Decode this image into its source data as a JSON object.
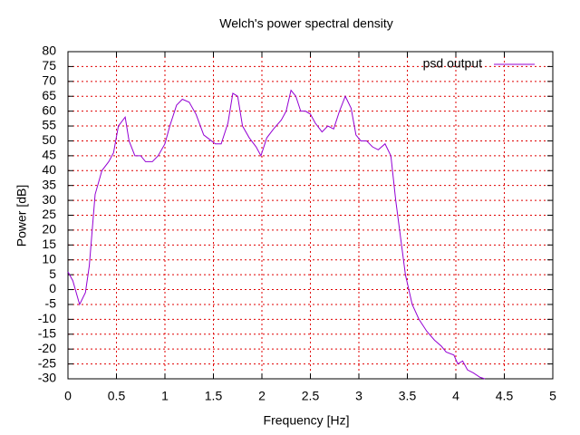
{
  "chart_data": {
    "type": "line",
    "title": "Welch's power spectral density",
    "x_label": "Frequency [Hz]",
    "y_label": "Power [dB]",
    "x": [
      0,
      0.05,
      0.12,
      0.18,
      0.22,
      0.28,
      0.35,
      0.42,
      0.47,
      0.52,
      0.59,
      0.63,
      0.69,
      0.75,
      0.8,
      0.87,
      0.93,
      1.0,
      1.05,
      1.12,
      1.18,
      1.25,
      1.32,
      1.4,
      1.48,
      1.52,
      1.58,
      1.65,
      1.7,
      1.75,
      1.8,
      1.87,
      1.94,
      1.99,
      2.05,
      2.12,
      2.2,
      2.25,
      2.3,
      2.35,
      2.4,
      2.45,
      2.5,
      2.55,
      2.62,
      2.68,
      2.74,
      2.8,
      2.86,
      2.92,
      2.97,
      3.02,
      3.08,
      3.14,
      3.2,
      3.27,
      3.33,
      3.38,
      3.44,
      3.48,
      3.55,
      3.62,
      3.7,
      3.78,
      3.85,
      3.9,
      3.98,
      4.02,
      4.07,
      4.12,
      4.18,
      4.25,
      4.3
    ],
    "series": [
      {
        "name": "psd output",
        "color": "#9400d3",
        "values": [
          6,
          3,
          -5,
          -1,
          8,
          32,
          40,
          43,
          46,
          55,
          58,
          50,
          45,
          45,
          43,
          43,
          45,
          49,
          55,
          62,
          64,
          63,
          59,
          52,
          50,
          49,
          49,
          56,
          66,
          65,
          55,
          51,
          48,
          45,
          51,
          54,
          57,
          60,
          67,
          65,
          60,
          60,
          59,
          56,
          53,
          55,
          54,
          60,
          65,
          61,
          52,
          50,
          50,
          48,
          47,
          49,
          45,
          30,
          15,
          5,
          -5,
          -10,
          -14,
          -17,
          -19,
          -21,
          -22,
          -25,
          -24,
          -27,
          -28,
          -29.5,
          -30
        ]
      }
    ],
    "xlim": [
      0,
      5
    ],
    "ylim": [
      -30,
      80
    ],
    "xticks": [
      0,
      0.5,
      1,
      1.5,
      2,
      2.5,
      3,
      3.5,
      4,
      4.5,
      5
    ],
    "yticks": [
      -30,
      -25,
      -20,
      -15,
      -10,
      -5,
      0,
      5,
      10,
      15,
      20,
      25,
      30,
      35,
      40,
      45,
      50,
      55,
      60,
      65,
      70,
      75,
      80
    ],
    "grid": true,
    "legend": "top-right"
  }
}
